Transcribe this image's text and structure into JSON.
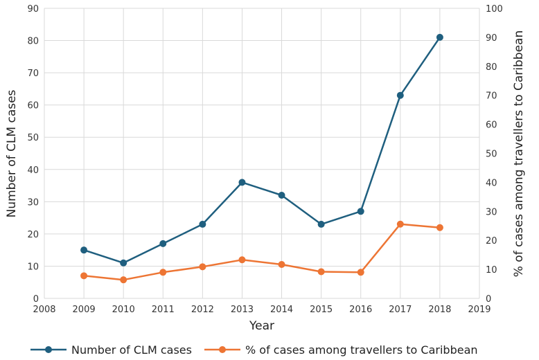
{
  "chart_data": {
    "type": "line",
    "xlabel": "Year",
    "ylabel": "Number of CLM cases",
    "y2label": "% of cases among travellers to Caribbean",
    "xlim": [
      2008,
      2019
    ],
    "xticks": [
      "2008",
      "2009",
      "2010",
      "2011",
      "2012",
      "2013",
      "2014",
      "2015",
      "2016",
      "2017",
      "2018",
      "2019"
    ],
    "ylim": [
      0,
      90
    ],
    "yticks": [
      "0",
      "10",
      "20",
      "30",
      "40",
      "50",
      "60",
      "70",
      "80",
      "90"
    ],
    "y2lim": [
      0,
      100
    ],
    "y2ticks": [
      "0",
      "10",
      "20",
      "30",
      "40",
      "50",
      "60",
      "70",
      "80",
      "90",
      "100"
    ],
    "grid": true,
    "legend_position": "bottom",
    "series": [
      {
        "name": "Number of CLM cases",
        "axis": "left",
        "color": "#1f5f7f",
        "x": [
          2009,
          2010,
          2011,
          2012,
          2013,
          2014,
          2015,
          2016,
          2017,
          2018
        ],
        "values": [
          15,
          11,
          17,
          23,
          36,
          32,
          23,
          27,
          63,
          81
        ]
      },
      {
        "name": "% of cases among travellers to Caribbean",
        "axis": "right",
        "color": "#ed7534",
        "x": [
          2009,
          2010,
          2011,
          2012,
          2013,
          2014,
          2015,
          2016,
          2017,
          2018
        ],
        "values": [
          7.8,
          6.4,
          9.0,
          10.9,
          13.3,
          11.7,
          9.2,
          9.0,
          25.6,
          24.4
        ]
      }
    ]
  }
}
